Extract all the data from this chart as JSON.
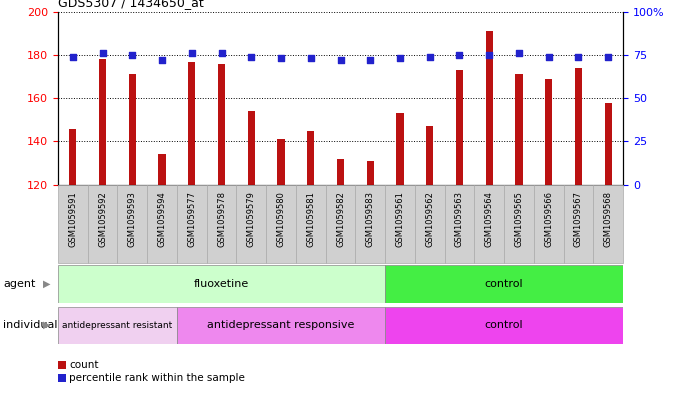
{
  "title": "GDS5307 / 1434650_at",
  "samples": [
    "GSM1059591",
    "GSM1059592",
    "GSM1059593",
    "GSM1059594",
    "GSM1059577",
    "GSM1059578",
    "GSM1059579",
    "GSM1059580",
    "GSM1059581",
    "GSM1059582",
    "GSM1059583",
    "GSM1059561",
    "GSM1059562",
    "GSM1059563",
    "GSM1059564",
    "GSM1059565",
    "GSM1059566",
    "GSM1059567",
    "GSM1059568"
  ],
  "counts": [
    146,
    178,
    171,
    134,
    177,
    176,
    154,
    141,
    145,
    132,
    131,
    153,
    147,
    173,
    191,
    171,
    169,
    174,
    158
  ],
  "percentiles": [
    74,
    76,
    75,
    72,
    76,
    76,
    74,
    73,
    73,
    72,
    72,
    73,
    74,
    75,
    75,
    76,
    74,
    74,
    74
  ],
  "ylim_left": [
    120,
    200
  ],
  "ylim_right": [
    0,
    100
  ],
  "yticks_left": [
    120,
    140,
    160,
    180,
    200
  ],
  "yticks_right": [
    0,
    25,
    50,
    75,
    100
  ],
  "ytick_labels_right": [
    "0",
    "25",
    "50",
    "75",
    "100%"
  ],
  "bar_color": "#bb1111",
  "dot_color": "#2222cc",
  "agent_groups": [
    {
      "label": "fluoxetine",
      "start": 0,
      "end": 11,
      "color": "#ccffcc"
    },
    {
      "label": "control",
      "start": 11,
      "end": 19,
      "color": "#44ee44"
    }
  ],
  "indiv_groups": [
    {
      "label": "antidepressant resistant",
      "start": 0,
      "end": 4,
      "color": "#f0d0f0"
    },
    {
      "label": "antidepressant responsive",
      "start": 4,
      "end": 11,
      "color": "#ee88ee"
    },
    {
      "label": "control",
      "start": 11,
      "end": 19,
      "color": "#ee44ee"
    }
  ],
  "sample_box_color": "#d0d0d0",
  "sample_box_edge": "#aaaaaa",
  "plot_bg": "#ffffff",
  "fig_bg": "#ffffff"
}
